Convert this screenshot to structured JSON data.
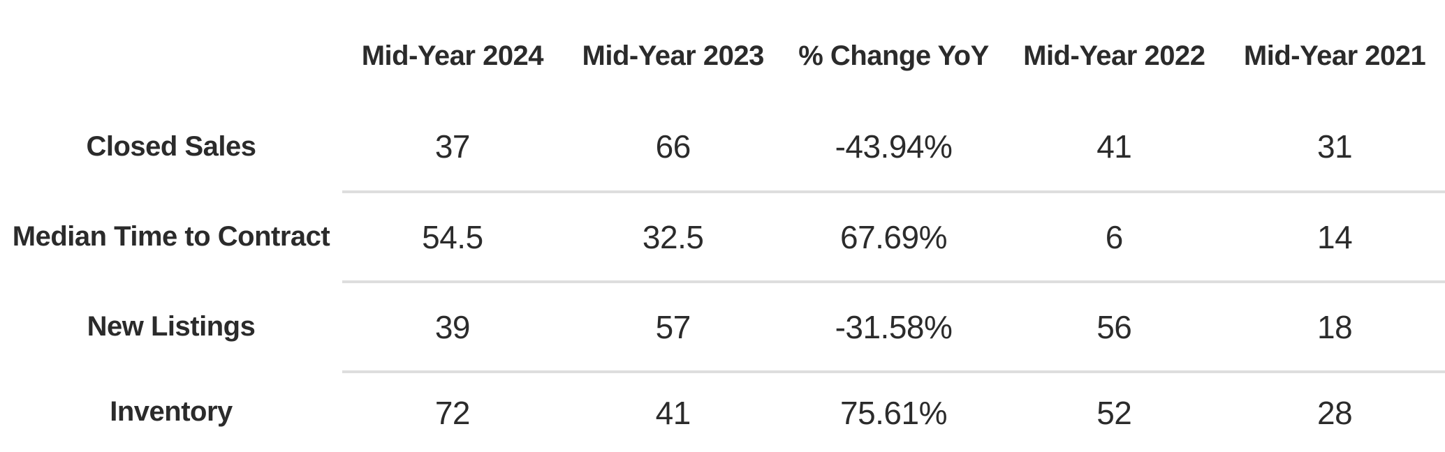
{
  "chart_data": {
    "type": "table",
    "title": "",
    "columns": [
      "Mid-Year 2024",
      "Mid-Year 2023",
      "% Change YoY",
      "Mid-Year 2022",
      "Mid-Year 2021"
    ],
    "rows": [
      {
        "label": "Closed Sales",
        "values": [
          "37",
          "66",
          "-43.94%",
          "41",
          "31"
        ]
      },
      {
        "label": "Median Time to Contract",
        "values": [
          "54.5",
          "32.5",
          "67.69%",
          "6",
          "14"
        ]
      },
      {
        "label": "New Listings",
        "values": [
          "39",
          "57",
          "-31.58%",
          "56",
          "18"
        ]
      },
      {
        "label": "Inventory",
        "values": [
          "72",
          "41",
          "75.61%",
          "52",
          "28"
        ]
      }
    ],
    "layout": {
      "grid": "horizontal dividers between data rows only, spanning value columns",
      "header_position": "top"
    }
  },
  "colors": {
    "background": "#ffffff",
    "text": "#2b2b2b",
    "divider": "#dedede"
  }
}
